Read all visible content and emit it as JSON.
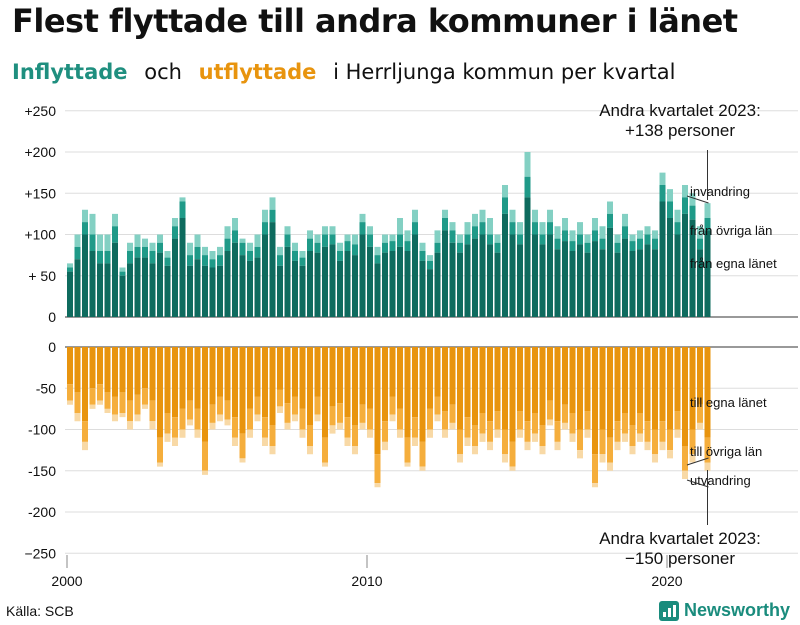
{
  "header": {
    "title": "Flest flyttade till andra kommuner i länet",
    "subtitle_in": "Inflyttade",
    "subtitle_och": "och",
    "subtitle_out": "utflyttade",
    "subtitle_rest": "i Herrljunga  kommun  per  kvartal"
  },
  "footer": {
    "source": "Källa: SCB",
    "brand": "Newsworthy"
  },
  "colors": {
    "in_egna": "#0e6b5e",
    "in_ovriga": "#1f9a88",
    "in_invandring": "#83d0c3",
    "out_egna": "#e8940e",
    "out_ovriga": "#f5ae3c",
    "out_utvandring": "#f8d9a6"
  },
  "chart_data": {
    "type": "bar",
    "x_start": 2000,
    "period": "kvartal",
    "x_ticks": [
      "2000",
      "2010",
      "2020"
    ],
    "top_y_ticks": [
      "+250",
      "+200",
      "+150",
      "+100",
      "+ 50",
      "0"
    ],
    "bottom_y_ticks": [
      "0",
      "-50",
      "-100",
      "-150",
      "-200",
      "−250"
    ],
    "ylim_top": [
      0,
      250
    ],
    "ylim_bottom": [
      -250,
      0
    ],
    "annotation_top": [
      "Andra kvartalet 2023:",
      "+138 personer"
    ],
    "annotation_bottom": [
      "Andra kvartalet 2023:",
      "−150 personer"
    ],
    "labels_top": [
      "invandring",
      "från övriga län",
      "från egna länet"
    ],
    "labels_bottom": [
      "till egna länet",
      "till övriga län",
      "utvandring"
    ],
    "inflyttade_total": [
      65,
      100,
      130,
      125,
      100,
      100,
      125,
      60,
      90,
      100,
      95,
      90,
      100,
      80,
      120,
      145,
      90,
      100,
      85,
      80,
      85,
      110,
      120,
      95,
      90,
      100,
      130,
      145,
      85,
      110,
      90,
      80,
      105,
      100,
      110,
      110,
      90,
      100,
      100,
      125,
      110,
      85,
      100,
      100,
      120,
      105,
      130,
      90,
      75,
      105,
      130,
      115,
      100,
      115,
      125,
      130,
      120,
      100,
      160,
      130,
      115,
      200,
      130,
      115,
      130,
      110,
      120,
      105,
      115,
      100,
      120,
      110,
      140,
      100,
      125,
      100,
      105,
      110,
      105,
      175,
      155,
      130,
      160,
      150,
      110,
      138
    ],
    "inflyttade_ovriga": [
      60,
      85,
      115,
      100,
      80,
      80,
      110,
      55,
      80,
      85,
      85,
      80,
      90,
      72,
      110,
      140,
      75,
      85,
      75,
      70,
      75,
      95,
      105,
      90,
      80,
      85,
      115,
      130,
      75,
      100,
      80,
      72,
      95,
      90,
      100,
      100,
      80,
      92,
      88,
      115,
      100,
      75,
      90,
      92,
      100,
      92,
      115,
      80,
      68,
      90,
      120,
      105,
      90,
      100,
      110,
      115,
      100,
      90,
      145,
      115,
      100,
      170,
      115,
      100,
      115,
      95,
      105,
      92,
      100,
      90,
      105,
      95,
      125,
      90,
      110,
      92,
      95,
      100,
      95,
      160,
      140,
      115,
      145,
      135,
      95,
      120
    ],
    "inflyttade_egna": [
      55,
      70,
      100,
      80,
      65,
      65,
      90,
      50,
      65,
      72,
      72,
      65,
      78,
      62,
      95,
      120,
      62,
      70,
      62,
      60,
      62,
      80,
      90,
      75,
      68,
      72,
      100,
      115,
      62,
      85,
      68,
      62,
      80,
      78,
      85,
      88,
      68,
      80,
      75,
      100,
      85,
      65,
      78,
      80,
      85,
      80,
      100,
      68,
      58,
      78,
      105,
      90,
      78,
      88,
      95,
      100,
      88,
      78,
      125,
      100,
      88,
      145,
      100,
      88,
      100,
      82,
      92,
      80,
      88,
      78,
      92,
      82,
      108,
      78,
      95,
      80,
      82,
      88,
      82,
      140,
      120,
      100,
      125,
      118,
      82,
      105
    ],
    "utflyttade_total": [
      70,
      90,
      125,
      75,
      70,
      80,
      90,
      85,
      100,
      90,
      75,
      100,
      145,
      115,
      120,
      110,
      95,
      110,
      155,
      100,
      90,
      95,
      120,
      140,
      110,
      90,
      120,
      130,
      80,
      100,
      90,
      110,
      130,
      90,
      145,
      105,
      100,
      120,
      130,
      100,
      110,
      170,
      125,
      90,
      110,
      145,
      120,
      150,
      110,
      90,
      110,
      100,
      140,
      120,
      130,
      115,
      125,
      110,
      140,
      150,
      110,
      125,
      115,
      130,
      95,
      125,
      100,
      115,
      135,
      110,
      170,
      140,
      150,
      125,
      115,
      130,
      115,
      125,
      140,
      125,
      135,
      110,
      160,
      140,
      100,
      150
    ],
    "utflyttade_ovriga": [
      65,
      80,
      115,
      70,
      65,
      75,
      82,
      80,
      90,
      82,
      70,
      90,
      140,
      105,
      110,
      100,
      88,
      100,
      150,
      92,
      82,
      88,
      110,
      135,
      100,
      82,
      110,
      120,
      72,
      92,
      82,
      100,
      120,
      82,
      140,
      95,
      92,
      110,
      120,
      92,
      100,
      165,
      115,
      82,
      100,
      140,
      110,
      145,
      100,
      82,
      100,
      92,
      130,
      110,
      120,
      105,
      115,
      100,
      130,
      145,
      100,
      115,
      105,
      120,
      88,
      115,
      92,
      105,
      125,
      100,
      165,
      130,
      140,
      115,
      105,
      120,
      105,
      115,
      130,
      115,
      125,
      100,
      150,
      130,
      92,
      140
    ],
    "utflyttade_egna": [
      45,
      55,
      90,
      50,
      45,
      55,
      60,
      55,
      65,
      58,
      50,
      65,
      110,
      80,
      85,
      75,
      65,
      75,
      115,
      70,
      60,
      65,
      85,
      105,
      75,
      60,
      85,
      95,
      52,
      68,
      60,
      75,
      95,
      60,
      110,
      72,
      68,
      85,
      95,
      70,
      75,
      130,
      90,
      60,
      75,
      110,
      85,
      115,
      75,
      60,
      78,
      70,
      100,
      85,
      95,
      80,
      90,
      78,
      100,
      115,
      78,
      90,
      80,
      95,
      65,
      90,
      70,
      80,
      100,
      78,
      130,
      100,
      110,
      90,
      80,
      95,
      80,
      90,
      100,
      90,
      100,
      78,
      120,
      100,
      70,
      110
    ]
  }
}
